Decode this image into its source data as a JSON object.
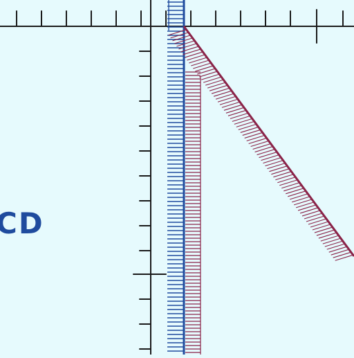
{
  "label_text": "CD",
  "colors": {
    "background": "#e6fafd",
    "axis": "#1a1a1a",
    "blue_boundary": "#1f4b9e",
    "red_boundary": "#8a2348",
    "label": "#1f4b9e"
  },
  "icons": {
    "blue_boundary": "vertical-boundary-hatched",
    "red_boundary": "diagonal-boundary-hatched"
  }
}
